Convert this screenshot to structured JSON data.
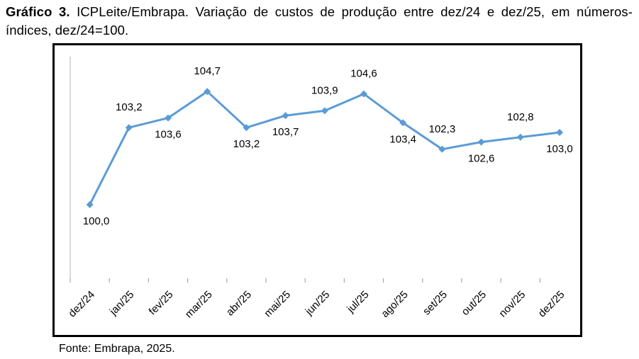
{
  "caption": {
    "label": "Gráfico 3.",
    "text": "ICPLeite/Embrapa. Variação de custos de produção entre dez/24 e dez/25, em números-índices, dez/24=100."
  },
  "source": "Fonte: Embrapa, 2025.",
  "colors": {
    "series": "#5b9bd5",
    "axis": "#a6a6a6",
    "frame": "#000000"
  },
  "chart_data": {
    "type": "line",
    "title": "ICPLeite/Embrapa. Variação de custos de produção entre dez/24 e dez/25, em números-índices, dez/24=100.",
    "xlabel": "",
    "ylabel": "",
    "categories": [
      "dez/24",
      "jan/25",
      "fev/25",
      "mar/25",
      "abr/25",
      "mai/25",
      "jun/25",
      "jul/25",
      "ago/25",
      "set/25",
      "out/25",
      "nov/25",
      "dez/25"
    ],
    "series": [
      {
        "name": "ICPLeite",
        "values": [
          100.0,
          103.2,
          103.6,
          104.7,
          103.2,
          103.7,
          103.9,
          104.6,
          103.4,
          102.3,
          102.6,
          102.8,
          103.0
        ],
        "labels": [
          "100,0",
          "103,2",
          "103,6",
          "104,7",
          "103,2",
          "103,7",
          "103,9",
          "104,6",
          "103,4",
          "102,3",
          "102,6",
          "102,8",
          "103,0"
        ],
        "label_positions": [
          "below",
          "above",
          "below",
          "above",
          "below",
          "below",
          "above",
          "above",
          "below",
          "above",
          "below",
          "above",
          "below"
        ]
      }
    ],
    "ylim": [
      95.0,
      106.0
    ],
    "y_axis_visible": false,
    "grid": false,
    "legend": "none",
    "marker": "diamond"
  }
}
